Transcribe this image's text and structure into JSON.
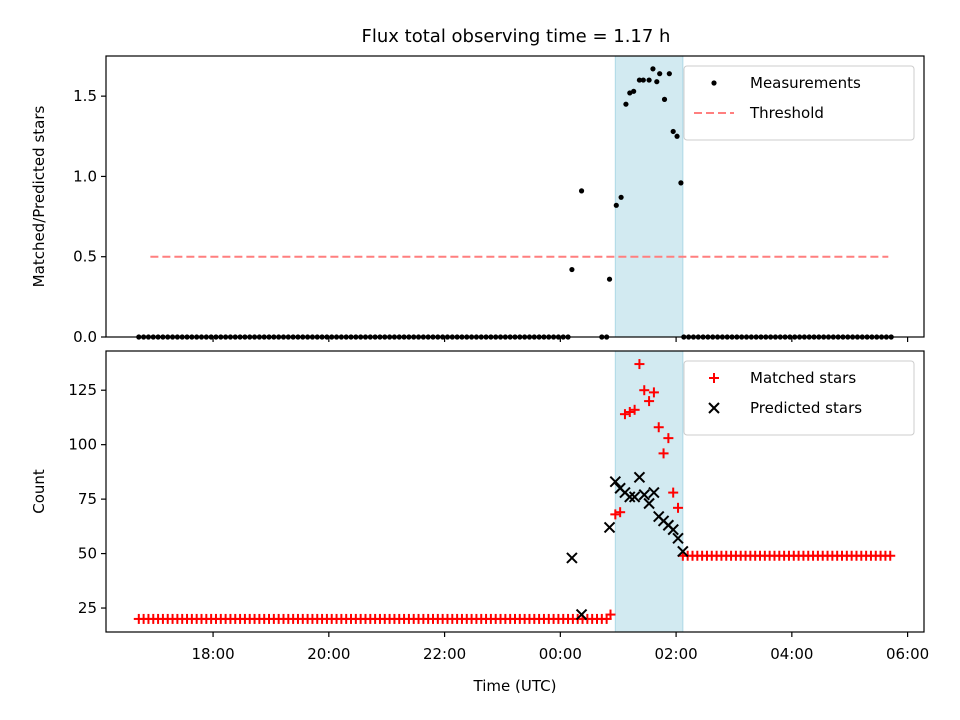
{
  "title": "Flux total observing time = 1.17 h",
  "chart_data": [
    {
      "type": "scatter",
      "ylabel": "Matched/Predicted stars",
      "ylim": [
        0,
        1.75
      ],
      "yticks": [
        0.0,
        0.5,
        1.0,
        1.5
      ],
      "ytick_labels": [
        "0.0",
        "0.5",
        "1.0",
        "1.5"
      ],
      "legend_placement": "top-right",
      "shaded_interval": [
        "00:57",
        "02:07"
      ],
      "shade_color": "#add8e6",
      "threshold": {
        "name": "Threshold",
        "y": 0.5,
        "x_range": [
          "16:55",
          "05:40"
        ],
        "color": "#ff7f7f"
      },
      "series": [
        {
          "name": "Measurements",
          "marker": "dot",
          "color": "#000000",
          "zero_range": {
            "from": "16:43",
            "to": "05:45",
            "step_min": 5,
            "gaps": [
              [
                "00:12",
                "00:40"
              ],
              [
                "00:52",
                "02:07"
              ]
            ]
          },
          "points": [
            [
              "00:12",
              0.42
            ],
            [
              "00:22",
              0.91
            ],
            [
              "00:51",
              0.36
            ],
            [
              "00:58",
              0.82
            ],
            [
              "01:03",
              0.87
            ],
            [
              "01:08",
              1.45
            ],
            [
              "01:12",
              1.52
            ],
            [
              "01:16",
              1.53
            ],
            [
              "01:22",
              1.6
            ],
            [
              "01:26",
              1.6
            ],
            [
              "01:32",
              1.6
            ],
            [
              "01:36",
              1.67
            ],
            [
              "01:40",
              1.59
            ],
            [
              "01:43",
              1.64
            ],
            [
              "01:48",
              1.48
            ],
            [
              "01:53",
              1.64
            ],
            [
              "01:57",
              1.28
            ],
            [
              "02:01",
              1.25
            ],
            [
              "02:05",
              0.96
            ]
          ]
        }
      ]
    },
    {
      "type": "scatter",
      "xlabel": "Time (UTC)",
      "ylabel": "Count",
      "ylim": [
        14,
        143
      ],
      "yticks": [
        25,
        50,
        75,
        100,
        125
      ],
      "ytick_labels": [
        "25",
        "50",
        "75",
        "100",
        "125"
      ],
      "xticks": [
        "18:00",
        "20:00",
        "22:00",
        "00:00",
        "02:00",
        "04:00",
        "06:00"
      ],
      "xlim": [
        "16:09",
        "06:17"
      ],
      "legend_placement": "top-right",
      "shaded_interval": [
        "00:57",
        "02:07"
      ],
      "shade_color": "#add8e6",
      "series": [
        {
          "name": "Matched stars",
          "marker": "plus",
          "color": "#ff0000",
          "constant_segments": [
            {
              "from": "16:43",
              "to": "00:48",
              "step_min": 5,
              "value": 20
            },
            {
              "from": "02:07",
              "to": "05:45",
              "step_min": 5,
              "value": 49
            }
          ],
          "points": [
            [
              "00:52",
              22
            ],
            [
              "00:57",
              68
            ],
            [
              "01:02",
              69
            ],
            [
              "01:07",
              114
            ],
            [
              "01:12",
              115
            ],
            [
              "01:17",
              116
            ],
            [
              "01:22",
              137
            ],
            [
              "01:27",
              125
            ],
            [
              "01:32",
              120
            ],
            [
              "01:37",
              124
            ],
            [
              "01:42",
              108
            ],
            [
              "01:47",
              96
            ],
            [
              "01:52",
              103
            ],
            [
              "01:57",
              78
            ],
            [
              "02:02",
              71
            ]
          ]
        },
        {
          "name": "Predicted stars",
          "marker": "x",
          "color": "#000000",
          "points": [
            [
              "00:12",
              48
            ],
            [
              "00:22",
              22
            ],
            [
              "00:51",
              62
            ],
            [
              "00:57",
              83
            ],
            [
              "01:02",
              80
            ],
            [
              "01:07",
              78
            ],
            [
              "01:12",
              76
            ],
            [
              "01:17",
              76
            ],
            [
              "01:22",
              85
            ],
            [
              "01:27",
              77
            ],
            [
              "01:32",
              73
            ],
            [
              "01:37",
              78
            ],
            [
              "01:42",
              67
            ],
            [
              "01:47",
              65
            ],
            [
              "01:52",
              63
            ],
            [
              "01:57",
              61
            ],
            [
              "02:02",
              57
            ],
            [
              "02:07",
              51
            ]
          ]
        }
      ]
    }
  ]
}
